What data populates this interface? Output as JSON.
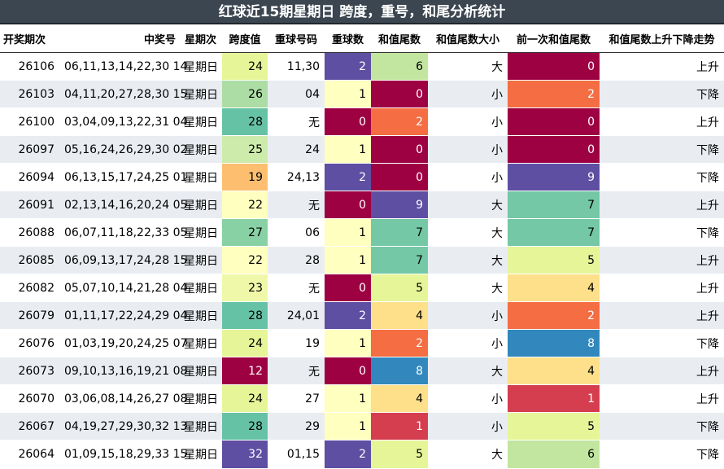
{
  "title": "红球近15期星期日 跨度，重号，和尾分析统计",
  "headers": [
    "开奖期次",
    "中奖号",
    "星期次",
    "跨度值",
    "重球号码",
    "重球数",
    "和值尾数",
    "和值尾数大小",
    "前一次和值尾数",
    "和值尾数上升下降走势"
  ],
  "rows": [
    {
      "issue": "26106",
      "numbers": "06,11,13,14,22,30 14",
      "weekday": "星期日",
      "span": "24",
      "repeat_nums": "11,30",
      "repeat_count": "2",
      "tail": "6",
      "size": "大",
      "prev_tail": "0",
      "trend": "上升"
    },
    {
      "issue": "26103",
      "numbers": "04,11,20,27,28,30 15",
      "weekday": "星期日",
      "span": "26",
      "repeat_nums": "04",
      "repeat_count": "1",
      "tail": "0",
      "size": "小",
      "prev_tail": "2",
      "trend": "下降"
    },
    {
      "issue": "26100",
      "numbers": "03,04,09,13,22,31 04",
      "weekday": "星期日",
      "span": "28",
      "repeat_nums": "无",
      "repeat_count": "0",
      "tail": "2",
      "size": "小",
      "prev_tail": "0",
      "trend": "上升"
    },
    {
      "issue": "26097",
      "numbers": "05,16,24,26,29,30 02",
      "weekday": "星期日",
      "span": "25",
      "repeat_nums": "24",
      "repeat_count": "1",
      "tail": "0",
      "size": "小",
      "prev_tail": "0",
      "trend": "下降"
    },
    {
      "issue": "26094",
      "numbers": "06,13,15,17,24,25 01",
      "weekday": "星期日",
      "span": "19",
      "repeat_nums": "24,13",
      "repeat_count": "2",
      "tail": "0",
      "size": "小",
      "prev_tail": "9",
      "trend": "下降"
    },
    {
      "issue": "26091",
      "numbers": "02,13,14,16,20,24 05",
      "weekday": "星期日",
      "span": "22",
      "repeat_nums": "无",
      "repeat_count": "0",
      "tail": "9",
      "size": "大",
      "prev_tail": "7",
      "trend": "上升"
    },
    {
      "issue": "26088",
      "numbers": "06,07,11,18,22,33 05",
      "weekday": "星期日",
      "span": "27",
      "repeat_nums": "06",
      "repeat_count": "1",
      "tail": "7",
      "size": "大",
      "prev_tail": "7",
      "trend": "下降"
    },
    {
      "issue": "26085",
      "numbers": "06,09,13,17,24,28 15",
      "weekday": "星期日",
      "span": "22",
      "repeat_nums": "28",
      "repeat_count": "1",
      "tail": "7",
      "size": "大",
      "prev_tail": "5",
      "trend": "上升"
    },
    {
      "issue": "26082",
      "numbers": "05,07,10,14,21,28 04",
      "weekday": "星期日",
      "span": "23",
      "repeat_nums": "无",
      "repeat_count": "0",
      "tail": "5",
      "size": "大",
      "prev_tail": "4",
      "trend": "上升"
    },
    {
      "issue": "26079",
      "numbers": "01,11,17,22,24,29 04",
      "weekday": "星期日",
      "span": "28",
      "repeat_nums": "24,01",
      "repeat_count": "2",
      "tail": "4",
      "size": "小",
      "prev_tail": "2",
      "trend": "上升"
    },
    {
      "issue": "26076",
      "numbers": "01,03,19,20,24,25 07",
      "weekday": "星期日",
      "span": "24",
      "repeat_nums": "19",
      "repeat_count": "1",
      "tail": "2",
      "size": "小",
      "prev_tail": "8",
      "trend": "下降"
    },
    {
      "issue": "26073",
      "numbers": "09,10,13,16,19,21 08",
      "weekday": "星期日",
      "span": "12",
      "repeat_nums": "无",
      "repeat_count": "0",
      "tail": "8",
      "size": "大",
      "prev_tail": "4",
      "trend": "上升"
    },
    {
      "issue": "26070",
      "numbers": "03,06,08,14,26,27 08",
      "weekday": "星期日",
      "span": "24",
      "repeat_nums": "27",
      "repeat_count": "1",
      "tail": "4",
      "size": "小",
      "prev_tail": "1",
      "trend": "上升"
    },
    {
      "issue": "26067",
      "numbers": "04,19,27,29,30,32 13",
      "weekday": "星期日",
      "span": "28",
      "repeat_nums": "29",
      "repeat_count": "1",
      "tail": "1",
      "size": "小",
      "prev_tail": "5",
      "trend": "下降"
    },
    {
      "issue": "26064",
      "numbers": "01,09,15,18,29,33 15",
      "weekday": "星期日",
      "span": "32",
      "repeat_nums": "01,15",
      "repeat_count": "2",
      "tail": "5",
      "size": "大",
      "prev_tail": "6",
      "trend": "下降"
    }
  ],
  "colors": {
    "span": {
      "12": "#9e0142",
      "19": "#fdbf6f",
      "22": "#ffffbf",
      "23": "#eef8a8",
      "24": "#e6f598",
      "25": "#cdebaa",
      "26": "#abdda4",
      "27": "#88d1a4",
      "28": "#66c2a5",
      "32": "#5e4fa2"
    },
    "repeat_count": {
      "0": "#9e0142",
      "1": "#ffffbf",
      "2": "#5e4fa2"
    },
    "digit": {
      "0": "#9e0142",
      "1": "#d53e4f",
      "2": "#f46d43",
      "4": "#fee08b",
      "5": "#e6f598",
      "6": "#c2e6a0",
      "7": "#74c8a5",
      "8": "#3288bd",
      "9": "#5e4fa2"
    }
  }
}
